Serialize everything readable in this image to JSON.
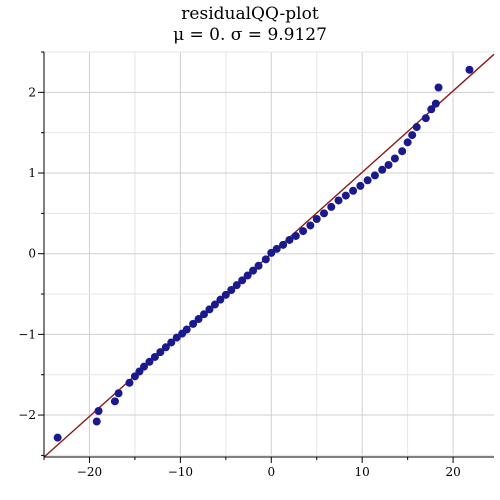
{
  "chart_data": {
    "type": "scatter",
    "title_line1": "residualQQ-plot",
    "title_line2": "μ = 0.  σ = 9.9127",
    "xlabel": "",
    "ylabel": "",
    "xlim": [
      -25,
      24.5
    ],
    "ylim": [
      -2.52,
      2.5
    ],
    "x_ticks": [
      -20,
      -10,
      0,
      10,
      20
    ],
    "x_tick_labels": [
      "−20",
      "−10",
      "0",
      "10",
      "20"
    ],
    "y_ticks": [
      -2,
      -1,
      0,
      1,
      2
    ],
    "y_tick_labels": [
      "−2",
      "−1",
      "0",
      "1",
      "2"
    ],
    "grid": true,
    "point_color": "#1a1a8c",
    "line_color": "#8b1a1a",
    "reference_line": {
      "slope": 0.10088,
      "intercept": 0
    },
    "points": [
      [
        -23.5,
        -2.28
      ],
      [
        -19.2,
        -2.08
      ],
      [
        -19.0,
        -1.95
      ],
      [
        -17.2,
        -1.83
      ],
      [
        -16.8,
        -1.73
      ],
      [
        -15.6,
        -1.6
      ],
      [
        -15.0,
        -1.52
      ],
      [
        -14.5,
        -1.46
      ],
      [
        -14.0,
        -1.4
      ],
      [
        -13.4,
        -1.34
      ],
      [
        -12.8,
        -1.28
      ],
      [
        -12.2,
        -1.22
      ],
      [
        -11.6,
        -1.16
      ],
      [
        -11.0,
        -1.1
      ],
      [
        -10.4,
        -1.04
      ],
      [
        -9.8,
        -0.99
      ],
      [
        -9.3,
        -0.94
      ],
      [
        -8.6,
        -0.87
      ],
      [
        -8.0,
        -0.81
      ],
      [
        -7.4,
        -0.75
      ],
      [
        -6.8,
        -0.69
      ],
      [
        -6.2,
        -0.63
      ],
      [
        -5.6,
        -0.57
      ],
      [
        -5.0,
        -0.51
      ],
      [
        -4.4,
        -0.45
      ],
      [
        -3.8,
        -0.39
      ],
      [
        -3.2,
        -0.33
      ],
      [
        -2.6,
        -0.27
      ],
      [
        -2.0,
        -0.21
      ],
      [
        -1.4,
        -0.15
      ],
      [
        -0.6,
        -0.07
      ],
      [
        0.0,
        0.01
      ],
      [
        0.6,
        0.06
      ],
      [
        1.3,
        0.11
      ],
      [
        2.0,
        0.17
      ],
      [
        2.7,
        0.22
      ],
      [
        3.5,
        0.28
      ],
      [
        4.3,
        0.35
      ],
      [
        5.0,
        0.43
      ],
      [
        5.8,
        0.5
      ],
      [
        6.6,
        0.58
      ],
      [
        7.4,
        0.66
      ],
      [
        8.2,
        0.72
      ],
      [
        9.0,
        0.78
      ],
      [
        9.8,
        0.84
      ],
      [
        10.6,
        0.91
      ],
      [
        11.4,
        0.97
      ],
      [
        12.2,
        1.04
      ],
      [
        12.9,
        1.1
      ],
      [
        13.6,
        1.18
      ],
      [
        14.4,
        1.27
      ],
      [
        15.0,
        1.38
      ],
      [
        15.5,
        1.47
      ],
      [
        16.0,
        1.57
      ],
      [
        17.0,
        1.68
      ],
      [
        17.6,
        1.79
      ],
      [
        18.1,
        1.86
      ],
      [
        18.4,
        2.06
      ],
      [
        21.8,
        2.28
      ]
    ]
  }
}
